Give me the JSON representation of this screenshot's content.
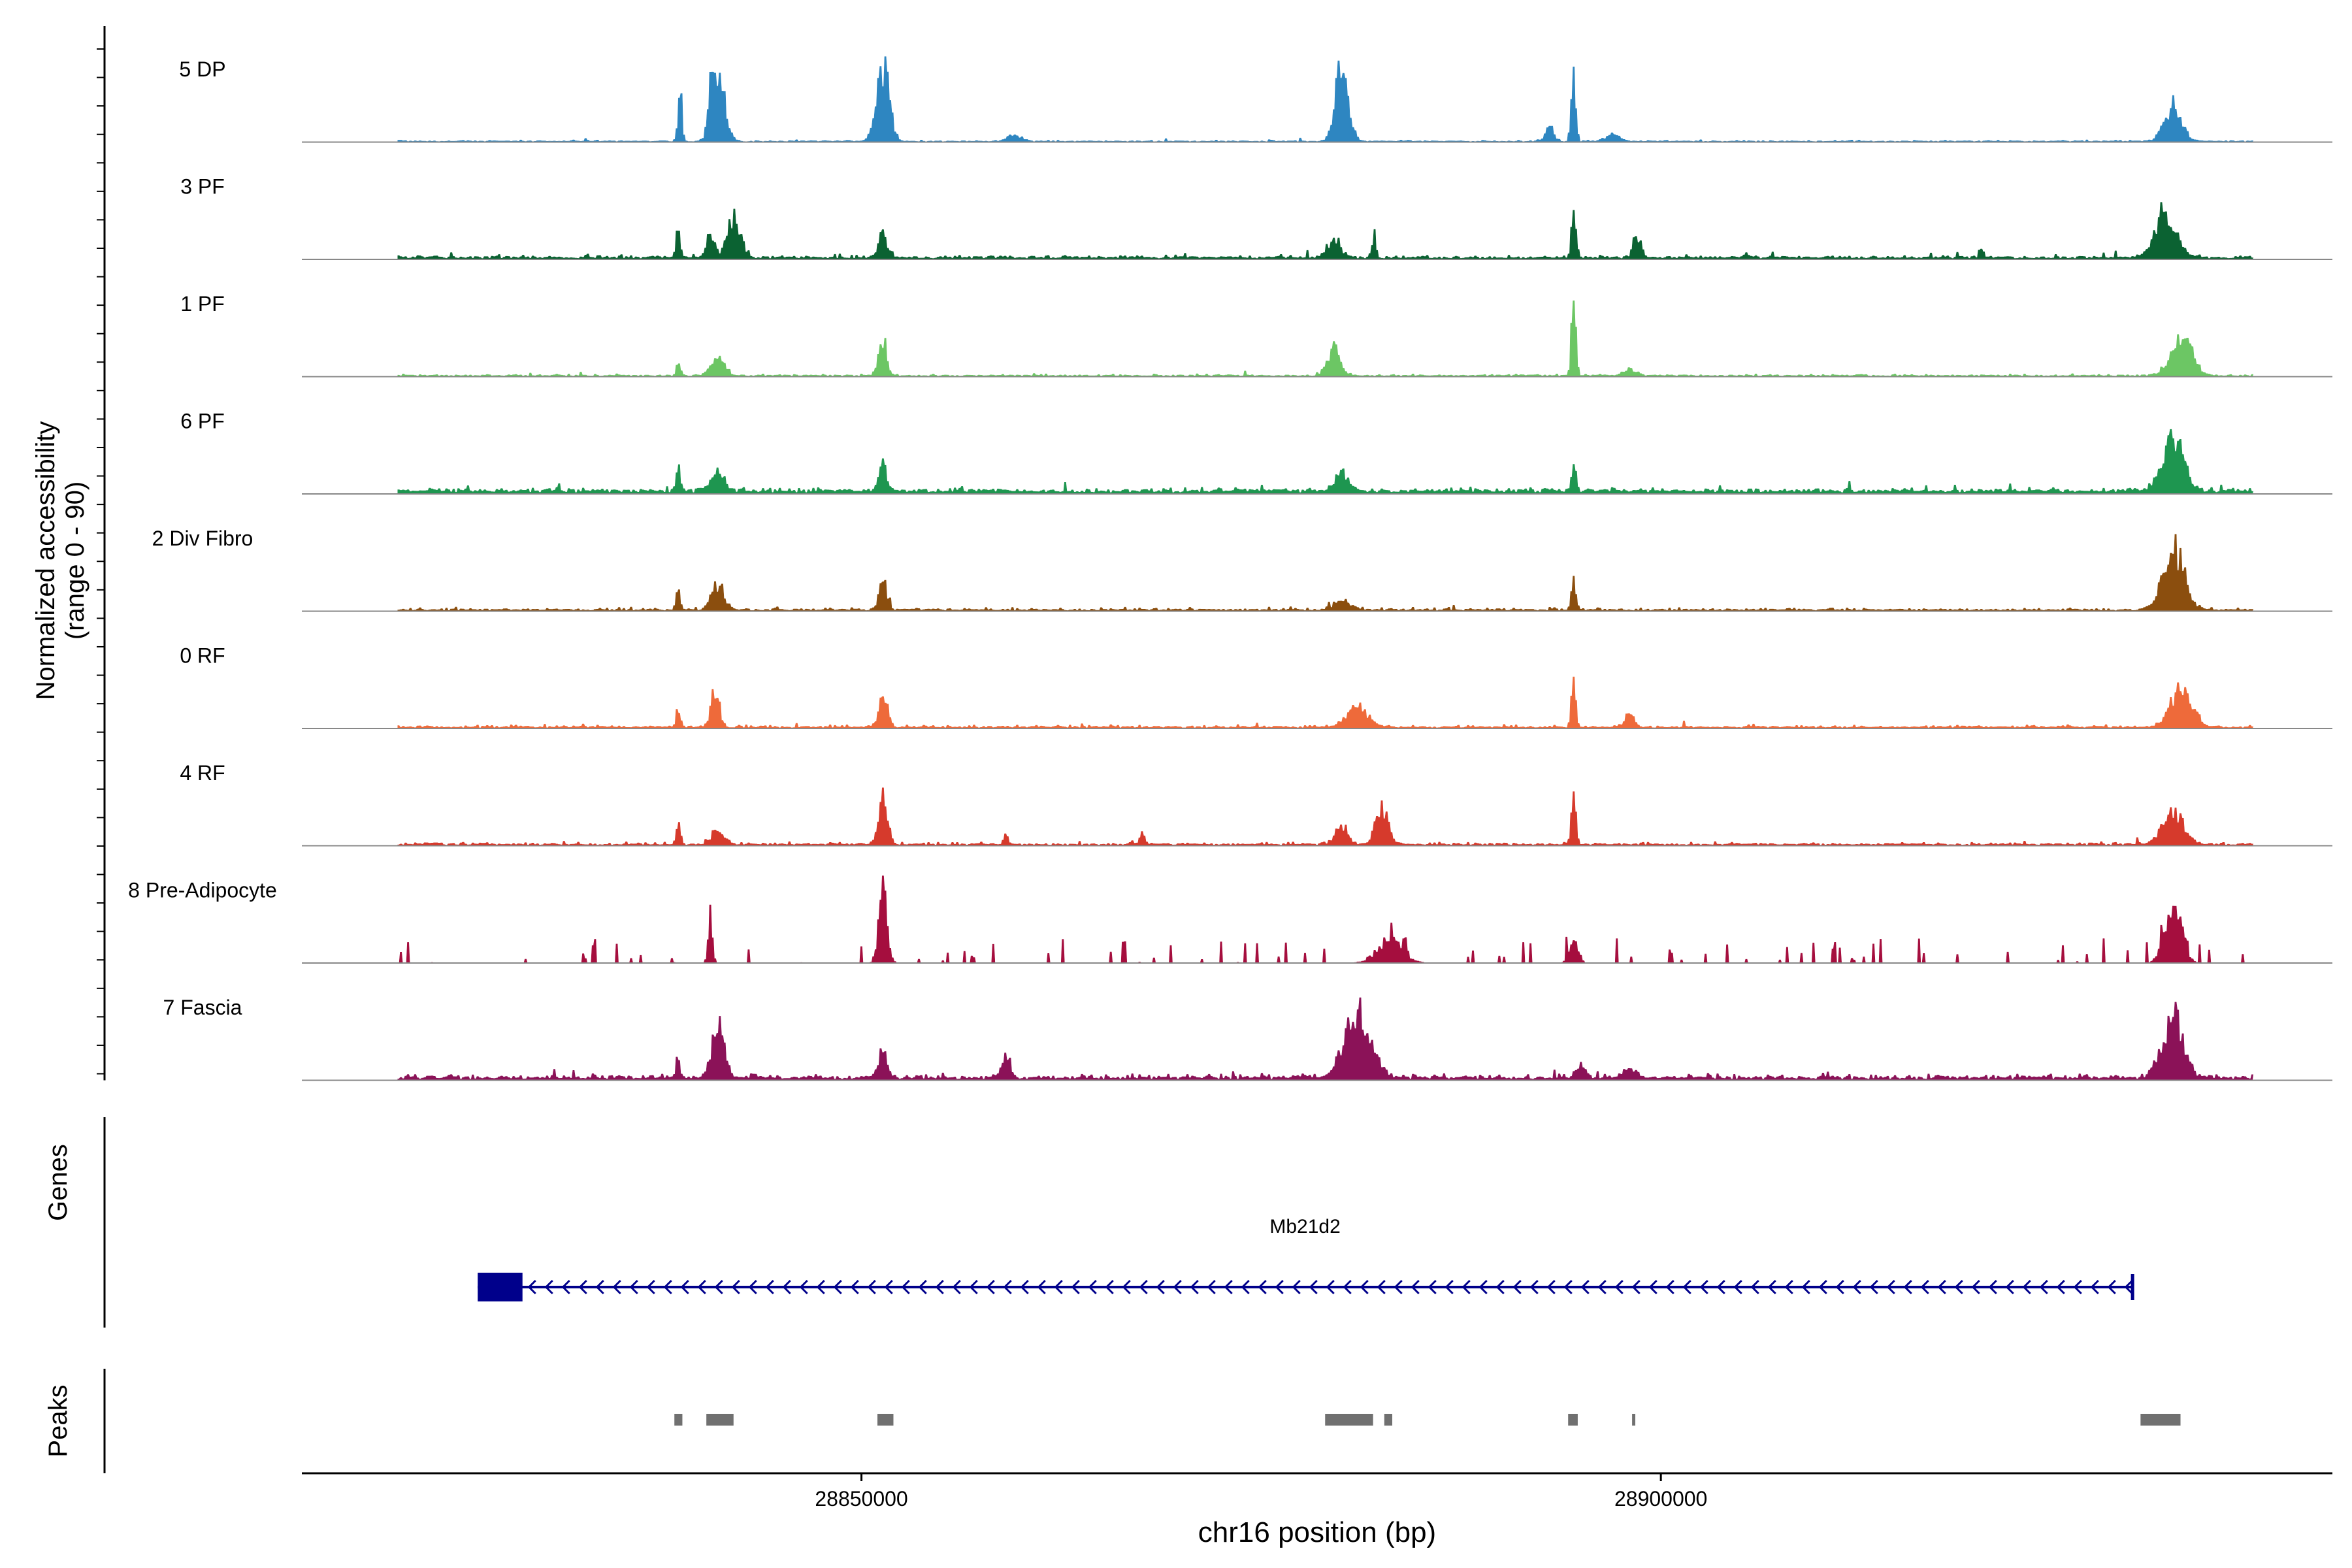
{
  "chart_data": {
    "type": "area",
    "ylabel_line1": "Normalized accessibility",
    "ylabel_line2": "(range 0 - 90)",
    "y_range": [
      0,
      90
    ],
    "xlabel": "chr16 position (bp)",
    "x_range": [
      28815000,
      28942000
    ],
    "x_ticks": [
      {
        "value": 28850000,
        "label": "28850000"
      },
      {
        "value": 28900000,
        "label": "28900000"
      }
    ],
    "signal_start": 28821000,
    "signal_end": 28937000,
    "tracks": [
      {
        "name": "5 DP",
        "color": "#2E86C1",
        "baseline": 1.0,
        "noise": 1.2,
        "density": 0.35,
        "peaks": [
          [
            28838600,
            60,
            1
          ],
          [
            28840500,
            35,
            1
          ],
          [
            28841000,
            80,
            3
          ],
          [
            28851300,
            85,
            3
          ],
          [
            28859500,
            8,
            3
          ],
          [
            28880000,
            90,
            3
          ],
          [
            28894500,
            92,
            1
          ],
          [
            28893000,
            15,
            2
          ],
          [
            28897000,
            8,
            3
          ],
          [
            28932000,
            40,
            4
          ]
        ]
      },
      {
        "name": "3 PF",
        "color": "#0B6232",
        "baseline": 2.0,
        "noise": 2.5,
        "density": 0.6,
        "peaks": [
          [
            28838500,
            35,
            1
          ],
          [
            28840500,
            25,
            2
          ],
          [
            28842000,
            45,
            3
          ],
          [
            28851300,
            28,
            2
          ],
          [
            28879500,
            20,
            3
          ],
          [
            28882000,
            25,
            1
          ],
          [
            28894500,
            60,
            1
          ],
          [
            28898500,
            20,
            2
          ],
          [
            28920000,
            12,
            1
          ],
          [
            28931500,
            50,
            5
          ]
        ]
      },
      {
        "name": "1 PF",
        "color": "#6CC664",
        "baseline": 1.2,
        "noise": 1.5,
        "density": 0.5,
        "peaks": [
          [
            28838500,
            12,
            1
          ],
          [
            28841000,
            25,
            3
          ],
          [
            28851300,
            35,
            2
          ],
          [
            28879500,
            30,
            3
          ],
          [
            28894500,
            85,
            1
          ],
          [
            28898000,
            6,
            3
          ],
          [
            28932500,
            45,
            5
          ]
        ]
      },
      {
        "name": "6 PF",
        "color": "#1E9650",
        "baseline": 3.0,
        "noise": 3.0,
        "density": 0.8,
        "peaks": [
          [
            28838500,
            30,
            1
          ],
          [
            28841000,
            22,
            3
          ],
          [
            28851300,
            28,
            2
          ],
          [
            28880000,
            20,
            3
          ],
          [
            28894500,
            35,
            1
          ],
          [
            28932000,
            60,
            5
          ]
        ]
      },
      {
        "name": "2 Div Fibro",
        "color": "#8B4E0E",
        "baseline": 1.5,
        "noise": 2.2,
        "density": 0.55,
        "peaks": [
          [
            28838500,
            20,
            1
          ],
          [
            28841000,
            28,
            3
          ],
          [
            28851300,
            30,
            2
          ],
          [
            28880000,
            10,
            4
          ],
          [
            28894500,
            32,
            1
          ],
          [
            28932000,
            68,
            5
          ]
        ]
      },
      {
        "name": "0 RF",
        "color": "#EE6A3A",
        "baseline": 1.5,
        "noise": 2.0,
        "density": 0.6,
        "peaks": [
          [
            28838500,
            22,
            1
          ],
          [
            28840800,
            42,
            2
          ],
          [
            28851300,
            38,
            2
          ],
          [
            28881000,
            22,
            5
          ],
          [
            28894500,
            60,
            1
          ],
          [
            28898000,
            15,
            2
          ],
          [
            28932500,
            45,
            5
          ]
        ]
      },
      {
        "name": "4 RF",
        "color": "#D63A2C",
        "baseline": 1.5,
        "noise": 2.2,
        "density": 0.6,
        "peaks": [
          [
            28838500,
            28,
            1
          ],
          [
            28841000,
            15,
            3
          ],
          [
            28851300,
            58,
            2
          ],
          [
            28859000,
            10,
            1
          ],
          [
            28867500,
            15,
            1
          ],
          [
            28880000,
            20,
            3
          ],
          [
            28882500,
            40,
            3
          ],
          [
            28894500,
            85,
            1
          ],
          [
            28932000,
            35,
            5
          ]
        ]
      },
      {
        "name": "8 Pre-Adipocyte",
        "color": "#A50E3E",
        "baseline": 0.0,
        "noise": 22.0,
        "density": 0.55,
        "peaks": [
          [
            28840500,
            50,
            1
          ],
          [
            28851300,
            80,
            2
          ],
          [
            28883000,
            25,
            6
          ],
          [
            28894500,
            30,
            2
          ],
          [
            28932000,
            60,
            4
          ]
        ]
      },
      {
        "name": "7 Fascia",
        "color": "#8B1258",
        "baseline": 2.5,
        "noise": 4.0,
        "density": 0.7,
        "peaks": [
          [
            28838500,
            20,
            1
          ],
          [
            28841000,
            55,
            3
          ],
          [
            28851300,
            35,
            2
          ],
          [
            28859000,
            28,
            2
          ],
          [
            28881000,
            75,
            6
          ],
          [
            28895000,
            15,
            2
          ],
          [
            28898000,
            12,
            3
          ],
          [
            28932000,
            65,
            5
          ]
        ]
      }
    ],
    "genes": {
      "label": "Genes",
      "name": "Mb21d2",
      "start": 28826000,
      "end": 28929500,
      "exon_start": 28826000,
      "exon_end": 28828800,
      "strand": "-",
      "color": "#00008B"
    },
    "peaks_track": {
      "label": "Peaks",
      "color": "#707070",
      "regions": [
        [
          28838300,
          28838800
        ],
        [
          28840300,
          28842000
        ],
        [
          28851000,
          28852000
        ],
        [
          28879000,
          28882000
        ],
        [
          28882700,
          28883200
        ],
        [
          28894200,
          28894800
        ],
        [
          28898200,
          28898400
        ],
        [
          28930000,
          28932500
        ]
      ]
    }
  }
}
